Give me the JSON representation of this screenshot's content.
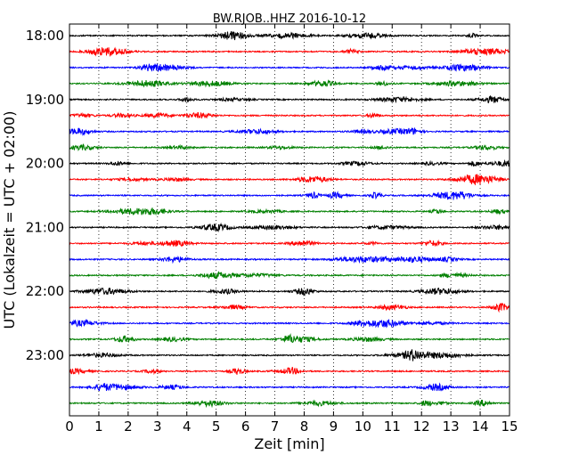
{
  "chart_data": {
    "type": "line",
    "title": "BW.RJOB..HHZ 2016-10-12",
    "xlabel": "Zeit  [min]",
    "ylabel": "UTC (Lokalzeit = UTC + 02:00)",
    "xlim": [
      0,
      15
    ],
    "x_ticks": [
      0,
      1,
      2,
      3,
      4,
      5,
      6,
      7,
      8,
      9,
      10,
      11,
      12,
      13,
      14,
      15
    ],
    "y_tick_labels": [
      "18:00",
      "19:00",
      "20:00",
      "21:00",
      "22:00",
      "23:00"
    ],
    "x_grid": "dotted vertical lines at every minute",
    "series_colors": [
      "#000000",
      "#ff0000",
      "#0000ff",
      "#008000"
    ],
    "traces": [
      {
        "start": "18:00",
        "color": "#000000"
      },
      {
        "start": "18:15",
        "color": "#ff0000"
      },
      {
        "start": "18:30",
        "color": "#0000ff"
      },
      {
        "start": "18:45",
        "color": "#008000"
      },
      {
        "start": "19:00",
        "color": "#000000"
      },
      {
        "start": "19:15",
        "color": "#ff0000"
      },
      {
        "start": "19:30",
        "color": "#0000ff"
      },
      {
        "start": "19:45",
        "color": "#008000"
      },
      {
        "start": "20:00",
        "color": "#000000"
      },
      {
        "start": "20:15",
        "color": "#ff0000"
      },
      {
        "start": "20:30",
        "color": "#0000ff"
      },
      {
        "start": "20:45",
        "color": "#008000"
      },
      {
        "start": "21:00",
        "color": "#000000"
      },
      {
        "start": "21:15",
        "color": "#ff0000"
      },
      {
        "start": "21:30",
        "color": "#0000ff"
      },
      {
        "start": "21:45",
        "color": "#008000"
      },
      {
        "start": "22:00",
        "color": "#000000"
      },
      {
        "start": "22:15",
        "color": "#ff0000"
      },
      {
        "start": "22:30",
        "color": "#0000ff"
      },
      {
        "start": "22:45",
        "color": "#008000"
      },
      {
        "start": "23:00",
        "color": "#000000"
      },
      {
        "start": "23:15",
        "color": "#ff0000"
      },
      {
        "start": "23:30",
        "color": "#0000ff"
      },
      {
        "start": "23:45",
        "color": "#008000"
      }
    ]
  }
}
